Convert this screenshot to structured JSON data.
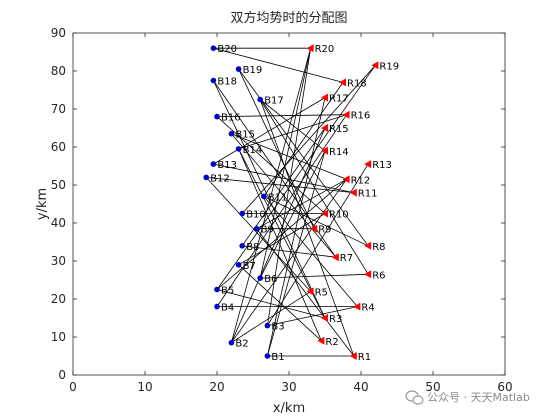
{
  "chart_data": {
    "type": "scatter",
    "title": "双方均势时的分配图",
    "xlabel": "x/km",
    "ylabel": "y/km",
    "xlim": [
      0,
      60
    ],
    "ylim": [
      0,
      90
    ],
    "xticks": [
      0,
      10,
      20,
      30,
      40,
      50,
      60
    ],
    "yticks": [
      0,
      10,
      20,
      30,
      40,
      50,
      60,
      70,
      80,
      90
    ],
    "grid": false,
    "colors": {
      "blue_points": "#0000cd",
      "red_points": "#ff0000",
      "lines": "#000000",
      "axes": "#262626"
    },
    "series": [
      {
        "name": "",
        "marker": "circle",
        "points": [
          {
            "label": "B1",
            "x": 27,
            "y": 5
          },
          {
            "label": "B2",
            "x": 22,
            "y": 8.5
          },
          {
            "label": "B3",
            "x": 27,
            "y": 13
          },
          {
            "label": "B4",
            "x": 20,
            "y": 18
          },
          {
            "label": "B5",
            "x": 20,
            "y": 22.5
          },
          {
            "label": "B6",
            "x": 26,
            "y": 25.5
          },
          {
            "label": "B7",
            "x": 23,
            "y": 29
          },
          {
            "label": "B8",
            "x": 23.5,
            "y": 34
          },
          {
            "label": "B9",
            "x": 25.5,
            "y": 38.5
          },
          {
            "label": "B10",
            "x": 23.5,
            "y": 42.5
          },
          {
            "label": "B11",
            "x": 26.5,
            "y": 47
          },
          {
            "label": "B12",
            "x": 18.5,
            "y": 52
          },
          {
            "label": "B13",
            "x": 19.5,
            "y": 55.5
          },
          {
            "label": "B14",
            "x": 23,
            "y": 59.5
          },
          {
            "label": "B15",
            "x": 22,
            "y": 63.5
          },
          {
            "label": "B16",
            "x": 20,
            "y": 68
          },
          {
            "label": "B17",
            "x": 26,
            "y": 72.5
          },
          {
            "label": "B18",
            "x": 19.5,
            "y": 77.5
          },
          {
            "label": "B19",
            "x": 23,
            "y": 80.5
          },
          {
            "label": "B20",
            "x": 19.5,
            "y": 86
          }
        ]
      },
      {
        "name": "",
        "marker": "triangle-left",
        "points": [
          {
            "label": "R1",
            "x": 39,
            "y": 5
          },
          {
            "label": "R2",
            "x": 34.5,
            "y": 9
          },
          {
            "label": "R3",
            "x": 35,
            "y": 15
          },
          {
            "label": "R4",
            "x": 39.5,
            "y": 18
          },
          {
            "label": "R5",
            "x": 33,
            "y": 22
          },
          {
            "label": "R6",
            "x": 41,
            "y": 26.5
          },
          {
            "label": "R7",
            "x": 36.5,
            "y": 31
          },
          {
            "label": "R8",
            "x": 41,
            "y": 34
          },
          {
            "label": "R9",
            "x": 33.5,
            "y": 38.5
          },
          {
            "label": "R10",
            "x": 35,
            "y": 42.5
          },
          {
            "label": "R11",
            "x": 39,
            "y": 48
          },
          {
            "label": "R12",
            "x": 38,
            "y": 51.5
          },
          {
            "label": "R13",
            "x": 41,
            "y": 55.5
          },
          {
            "label": "R14",
            "x": 35,
            "y": 59
          },
          {
            "label": "R15",
            "x": 35,
            "y": 65
          },
          {
            "label": "R16",
            "x": 38,
            "y": 68.5
          },
          {
            "label": "R17",
            "x": 35,
            "y": 73
          },
          {
            "label": "R18",
            "x": 37.5,
            "y": 77
          },
          {
            "label": "R19",
            "x": 42,
            "y": 81.5
          },
          {
            "label": "R20",
            "x": 33,
            "y": 86
          }
        ]
      }
    ],
    "links": [
      [
        "B1",
        "R17"
      ],
      [
        "B1",
        "R14"
      ],
      [
        "B1",
        "R1"
      ],
      [
        "B2",
        "R20"
      ],
      [
        "B2",
        "R15"
      ],
      [
        "B2",
        "R12"
      ],
      [
        "B2",
        "R5"
      ],
      [
        "B3",
        "R4"
      ],
      [
        "B3",
        "R20"
      ],
      [
        "B3",
        "R13"
      ],
      [
        "B4",
        "R4"
      ],
      [
        "B4",
        "R16"
      ],
      [
        "B5",
        "R3"
      ],
      [
        "B5",
        "R19"
      ],
      [
        "B5",
        "R12"
      ],
      [
        "B6",
        "R6"
      ],
      [
        "B6",
        "R20"
      ],
      [
        "B6",
        "R14"
      ],
      [
        "B7",
        "R2"
      ],
      [
        "B7",
        "R10"
      ],
      [
        "B8",
        "R7"
      ],
      [
        "B8",
        "R15"
      ],
      [
        "B9",
        "R9"
      ],
      [
        "B9",
        "R12"
      ],
      [
        "B9",
        "R1"
      ],
      [
        "B10",
        "R19"
      ],
      [
        "B10",
        "R10"
      ],
      [
        "B11",
        "R8"
      ],
      [
        "B11",
        "R4"
      ],
      [
        "B11",
        "R18"
      ],
      [
        "B12",
        "R11"
      ],
      [
        "B12",
        "R5"
      ],
      [
        "B13",
        "R17"
      ],
      [
        "B13",
        "R11"
      ],
      [
        "B14",
        "R2"
      ],
      [
        "B14",
        "R3"
      ],
      [
        "B14",
        "R16"
      ],
      [
        "B15",
        "R12"
      ],
      [
        "B15",
        "R7"
      ],
      [
        "B16",
        "R16"
      ],
      [
        "B16",
        "R10"
      ],
      [
        "B17",
        "R6"
      ],
      [
        "B17",
        "R14"
      ],
      [
        "B17",
        "R1"
      ],
      [
        "B18",
        "R3"
      ],
      [
        "B18",
        "R7"
      ],
      [
        "B19",
        "R8"
      ],
      [
        "B19",
        "R9"
      ],
      [
        "B20",
        "R20"
      ],
      [
        "B20",
        "R18"
      ]
    ]
  },
  "watermark": {
    "text": "公众号 · 天天Matlab",
    "icon": "wechat-icon"
  }
}
